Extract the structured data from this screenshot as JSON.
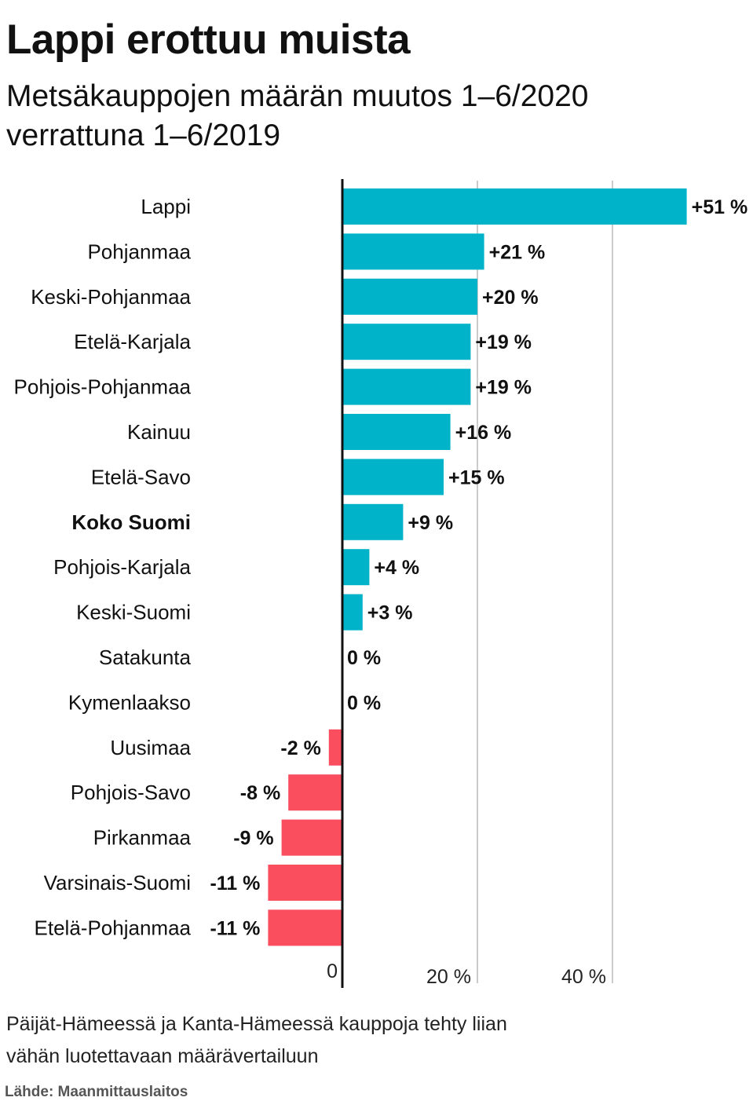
{
  "title": "Lappi erottuu muista",
  "subtitle": "Metsäkauppojen määrän muutos 1–6/2020 verrattuna 1–6/2019",
  "note": "Päijät-Hämeessä ja Kanta-Hämeessä kauppoja tehty liian vähän luotettavaan määrävertailuun",
  "source": "Lähde: Maanmittauslaitos",
  "colors": {
    "positive": "#00b3c8",
    "negative": "#fa4d5e",
    "grid": "#cccccc",
    "axis": "#111111"
  },
  "chart_data": {
    "type": "bar",
    "orientation": "horizontal",
    "title": "Lappi erottuu muista",
    "subtitle": "Metsäkauppojen määrän muutos 1–6/2020 verrattuna 1–6/2019",
    "categories": [
      "Lappi",
      "Pohjanmaa",
      "Keski-Pohjanmaa",
      "Etelä-Karjala",
      "Pohjois-Pohjanmaa",
      "Kainuu",
      "Etelä-Savo",
      "Koko Suomi",
      "Pohjois-Karjala",
      "Keski-Suomi",
      "Satakunta",
      "Kymenlaakso",
      "Uusimaa",
      "Pohjois-Savo",
      "Pirkanmaa",
      "Varsinais-Suomi",
      "Etelä-Pohjanmaa"
    ],
    "values": [
      51,
      21,
      20,
      19,
      19,
      16,
      15,
      9,
      4,
      3,
      0,
      0,
      -2,
      -8,
      -9,
      -11,
      -11
    ],
    "value_labels": [
      "+51 %",
      "+21 %",
      "+20 %",
      "+19 %",
      "+19 %",
      "+16 %",
      "+15 %",
      "+9 %",
      "+4 %",
      "+3 %",
      "0 %",
      "0 %",
      "-2 %",
      "-8 %",
      "-9 %",
      "-11 %",
      "-11 %"
    ],
    "bold_category": "Koko Suomi",
    "xticks": [
      0,
      20,
      40
    ],
    "xtick_labels": [
      "0",
      "20 %",
      "40 %"
    ],
    "xlim": [
      -11.5,
      51
    ],
    "xlabel": "",
    "ylabel": "",
    "grid": true
  }
}
